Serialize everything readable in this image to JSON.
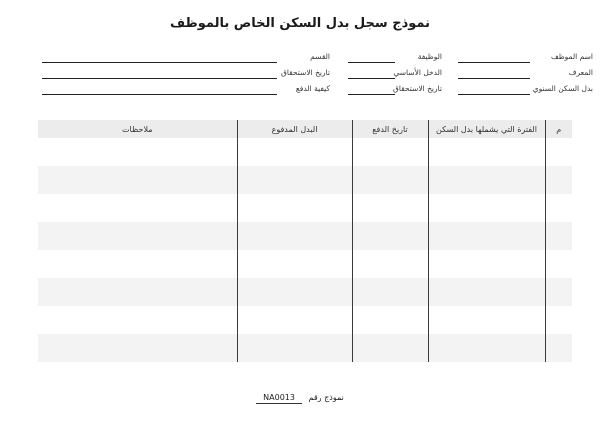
{
  "title": "نموذج سجل بدل السكن الخاص بالموظف",
  "form_fields": {
    "right_column": [
      {
        "label": "اسم الموظف",
        "value": ""
      },
      {
        "label": "المعرف",
        "value": ""
      },
      {
        "label": "بدل السكن السنوي",
        "value": ""
      }
    ],
    "middle_column": [
      {
        "label": "الوظيفة",
        "value": ""
      },
      {
        "label": "الدخل الأساسي",
        "value": ""
      },
      {
        "label": "تاريخ الاستحقاق",
        "value": ""
      }
    ],
    "left_column": [
      {
        "label": "القسم",
        "value": ""
      },
      {
        "label": "تاريخ الاستحقاق",
        "value": ""
      },
      {
        "label": "كيفية الدفع",
        "value": ""
      }
    ]
  },
  "table": {
    "headers": [
      "م",
      "الفترة التي يشملها بدل السكن",
      "تاريخ الدفع",
      "البدل المدفوع",
      "ملاحظات"
    ],
    "rows": [
      [
        "",
        "",
        "",
        "",
        ""
      ],
      [
        "",
        "",
        "",
        "",
        ""
      ],
      [
        "",
        "",
        "",
        "",
        ""
      ],
      [
        "",
        "",
        "",
        "",
        ""
      ],
      [
        "",
        "",
        "",
        "",
        ""
      ],
      [
        "",
        "",
        "",
        "",
        ""
      ],
      [
        "",
        "",
        "",
        "",
        ""
      ],
      [
        "",
        "",
        "",
        "",
        ""
      ]
    ]
  },
  "footer": {
    "form_number_label": "نموذج رقم",
    "form_number_value": "NA0013"
  },
  "colors": {
    "header_bg": "#ececec",
    "stripe_bg": "#f3f3f3",
    "field_line": "#222222",
    "column_divider": "#3a3a3a"
  }
}
